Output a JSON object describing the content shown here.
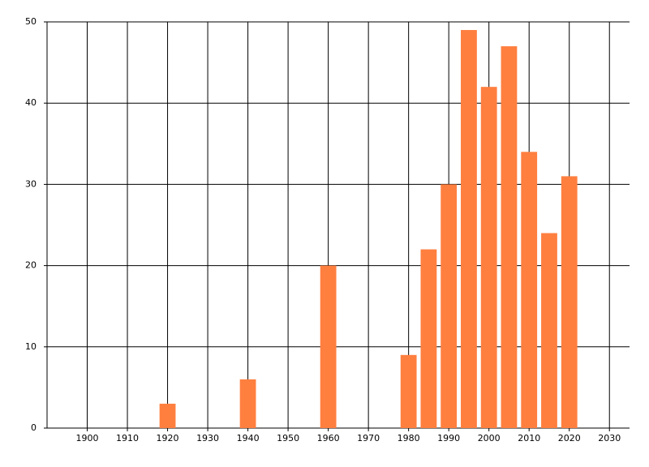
{
  "chart_data": {
    "type": "bar",
    "x": [
      1920,
      1940,
      1960,
      1980,
      1985,
      1990,
      1995,
      2000,
      2005,
      2010,
      2015,
      2020
    ],
    "values": [
      3,
      6,
      20,
      9,
      22,
      30,
      49,
      42,
      47,
      34,
      24,
      31
    ],
    "color": "#ff7f3f",
    "xlim": [
      1890,
      2035
    ],
    "xticks": [
      1900,
      1910,
      1920,
      1930,
      1940,
      1950,
      1960,
      1970,
      1980,
      1990,
      2000,
      2010,
      2020,
      2030
    ],
    "ylim": [
      0,
      50
    ],
    "yticks": [
      0,
      10,
      20,
      30,
      40,
      50
    ],
    "grid": true
  }
}
